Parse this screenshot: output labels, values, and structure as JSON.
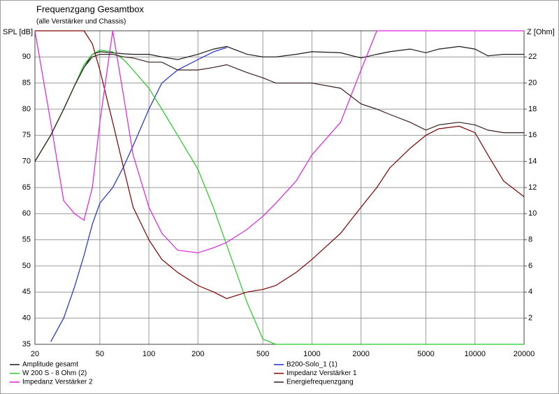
{
  "chart_data": {
    "type": "line",
    "title": "Frequenzgang Gesamtbox",
    "subtitle": "(alle Verstärker und Chassis)",
    "ylabel": "SPL [dB]",
    "y2label": "Z [Ohm]",
    "xscale": "log",
    "grid": true,
    "x": [
      20,
      25,
      30,
      35,
      40,
      45,
      50,
      60,
      70,
      80,
      100,
      120,
      150,
      200,
      250,
      300,
      400,
      500,
      600,
      800,
      1000,
      1500,
      2000,
      2500,
      3000,
      4000,
      5000,
      6000,
      8000,
      10000,
      12000,
      15000,
      20000
    ],
    "xlim": [
      20,
      20000
    ],
    "xticks": [
      20,
      50,
      100,
      200,
      500,
      1000,
      2000,
      5000,
      10000,
      20000
    ],
    "ylim": [
      35,
      95
    ],
    "yticks": [
      35,
      40,
      45,
      50,
      55,
      60,
      65,
      70,
      75,
      80,
      85,
      90
    ],
    "y2lim": [
      0,
      24
    ],
    "y2ticks": [
      2,
      4,
      6,
      8,
      10,
      12,
      14,
      16,
      18,
      20,
      22
    ],
    "series": [
      {
        "name": "Amplitude gesamt",
        "color": "#1a1a1a",
        "values": [
          70,
          75,
          80,
          84.5,
          88,
          90.5,
          91,
          90.8,
          90.6,
          90.5,
          90.5,
          90,
          89.5,
          90.5,
          91.5,
          92,
          90.5,
          90,
          90,
          90.5,
          91,
          90.8,
          89.8,
          90.5,
          91,
          91.5,
          90.8,
          91.5,
          92,
          91.5,
          90.2,
          90.5,
          90.5
        ]
      },
      {
        "name": "B200-Solo_1 (1)",
        "color": "#1c2fd0",
        "values": [
          null,
          35.5,
          40,
          46,
          52,
          58,
          62,
          65,
          69,
          73,
          80,
          85,
          87.5,
          89.5,
          91,
          91.8,
          null,
          null,
          null,
          null,
          null,
          null,
          null,
          null,
          null,
          null,
          null,
          null,
          null,
          null,
          null,
          null,
          null
        ]
      },
      {
        "name": "W 200 S - 8 Ohm (2)",
        "color": "#22cc22",
        "values": [
          70,
          75,
          80,
          84.5,
          88.5,
          90.5,
          91.3,
          91,
          89.5,
          87.5,
          84,
          80,
          75,
          68.5,
          61,
          54,
          43,
          36,
          35,
          35,
          35,
          35,
          35,
          35,
          35,
          35,
          35,
          35,
          35,
          35,
          35,
          35,
          35
        ]
      },
      {
        "name": "Impedanz Verstärker 1",
        "color": "#800000",
        "axis": "y2",
        "values": [
          24,
          24,
          24,
          24,
          24,
          23,
          21,
          17,
          13.5,
          10.5,
          8,
          6.5,
          5.5,
          4.5,
          4,
          3.5,
          4,
          4.2,
          4.5,
          5.5,
          6.5,
          8.5,
          10.5,
          12,
          13.5,
          15,
          16,
          16.5,
          16.7,
          16.2,
          14.5,
          12.5,
          11.3
        ]
      },
      {
        "name": "Impedanz Verstärker 2",
        "color": "#e020e0",
        "axis": "y2",
        "values": [
          24,
          17,
          11,
          10,
          9.5,
          12,
          17,
          24,
          19,
          14.5,
          10.5,
          8.5,
          7.2,
          7,
          7.4,
          7.8,
          8.8,
          9.8,
          10.8,
          12.5,
          14.5,
          17,
          21,
          24,
          24,
          24,
          24,
          24,
          24,
          24,
          24,
          24,
          24
        ]
      },
      {
        "name": "Energiefrequenzgang",
        "color": "#3a1f1f",
        "values": [
          70,
          75,
          80,
          84.5,
          88,
          90,
          90.5,
          90.5,
          90,
          89.8,
          89,
          89,
          87.5,
          87.5,
          88,
          88.5,
          87,
          86,
          85,
          85,
          85,
          84,
          81,
          80,
          79,
          77.5,
          76,
          77,
          77.5,
          77,
          76,
          75.5,
          75.5
        ]
      }
    ]
  }
}
